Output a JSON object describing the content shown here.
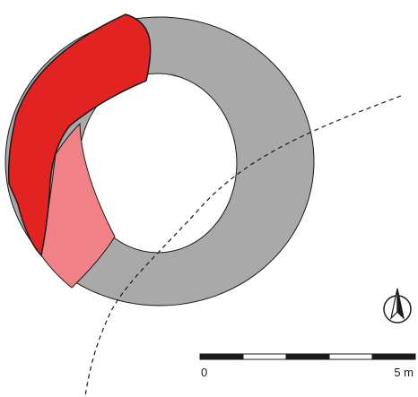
{
  "map": {
    "feature": "ring",
    "regions": [
      {
        "name": "gray-ring",
        "color": "#a9a9a9"
      },
      {
        "name": "red-zone",
        "color": "#e32322"
      },
      {
        "name": "pink-zone",
        "color": "#f08288"
      }
    ],
    "outline_color": "#1a1a1a",
    "trace": {
      "style": "dashed",
      "color": "#1a1a1a"
    },
    "north_arrow": {
      "icon": "north-arrow-icon"
    },
    "scale_bar": {
      "start_label": "0",
      "end_label": "5 m",
      "segments": 5,
      "colors": [
        "#1a1a1a",
        "#ffffff"
      ]
    }
  }
}
